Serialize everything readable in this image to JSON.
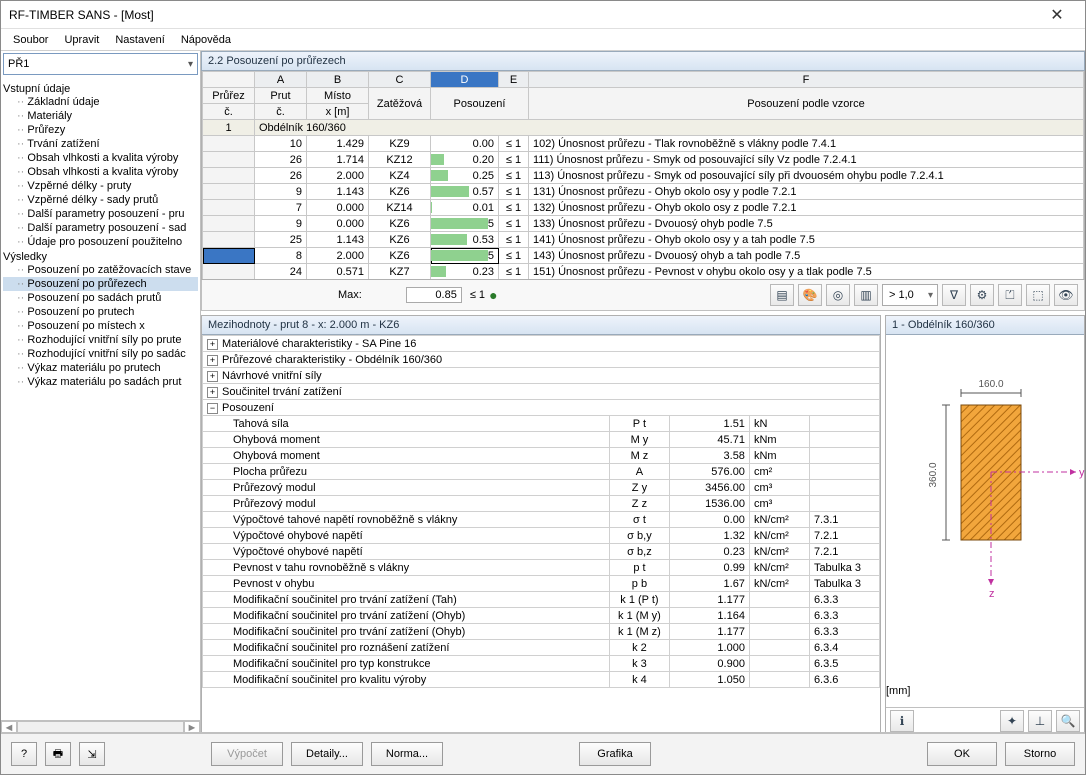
{
  "window": {
    "title": "RF-TIMBER SANS - [Most]"
  },
  "menu": [
    "Soubor",
    "Upravit",
    "Nastavení",
    "Nápověda"
  ],
  "case_selector": "PŘ1",
  "nav": {
    "input_title": "Vstupní údaje",
    "input_items": [
      "Základní údaje",
      "Materiály",
      "Průřezy",
      "Trvání zatížení",
      "Obsah vlhkosti a kvalita výroby",
      "Obsah vlhkosti a kvalita výroby",
      "Vzpěrné délky - pruty",
      "Vzpěrné délky - sady prutů",
      "Další parametry posouzení - pru",
      "Další parametry posouzení - sad",
      "Údaje pro posouzení použitelno"
    ],
    "results_title": "Výsledky",
    "results_items": [
      "Posouzení po zatěžovacích stave",
      "Posouzení po průřezech",
      "Posouzení po sadách prutů",
      "Posouzení po prutech",
      "Posouzení po místech x",
      "Rozhodující vnitřní síly po prute",
      "Rozhodující vnitřní síly po sadác",
      "Výkaz materiálu po prutech",
      "Výkaz materiálu po sadách prut"
    ],
    "selected": "Posouzení po průřezech"
  },
  "section_title": "2.2  Posouzení po průřezech",
  "grid": {
    "col_letters": [
      "A",
      "B",
      "C",
      "D",
      "E",
      "F"
    ],
    "headers_row1": [
      "Průřez",
      "Prut",
      "Místo",
      "",
      "",
      "",
      ""
    ],
    "headers_row2": [
      "č.",
      "č.",
      "x [m]",
      "Zatěžová",
      "Posouzení",
      "",
      "Posouzení podle vzorce"
    ],
    "group_label": "Obdélník 160/360",
    "group_no": "1",
    "rows": [
      {
        "prut": 10,
        "x": "1.429",
        "lc": "KZ9",
        "ratio": 0.0,
        "fill": 0.0,
        "desc": "102) Únosnost průřezu - Tlak rovnoběžně s vlákny podle 7.4.1"
      },
      {
        "prut": 26,
        "x": "1.714",
        "lc": "KZ12",
        "ratio": 0.2,
        "fill": 0.2,
        "desc": "111) Únosnost průřezu - Smyk od posouvající síly Vz podle 7.2.4.1"
      },
      {
        "prut": 26,
        "x": "2.000",
        "lc": "KZ4",
        "ratio": 0.25,
        "fill": 0.25,
        "desc": "113) Únosnost průřezu - Smyk od posouvající síly při dvouosém ohybu podle 7.2.4.1"
      },
      {
        "prut": 9,
        "x": "1.143",
        "lc": "KZ6",
        "ratio": 0.57,
        "fill": 0.57,
        "desc": "131) Únosnost průřezu - Ohyb okolo osy y podle 7.2.1"
      },
      {
        "prut": 7,
        "x": "0.000",
        "lc": "KZ14",
        "ratio": 0.01,
        "fill": 0.01,
        "desc": "132) Únosnost průřezu - Ohyb okolo osy z podle 7.2.1"
      },
      {
        "prut": 9,
        "x": "0.000",
        "lc": "KZ6",
        "ratio": 0.85,
        "fill": 0.85,
        "desc": "133) Únosnost průřezu - Dvouosý ohyb podle 7.5"
      },
      {
        "prut": 25,
        "x": "1.143",
        "lc": "KZ6",
        "ratio": 0.53,
        "fill": 0.53,
        "desc": "141) Únosnost průřezu - Ohyb okolo osy y a tah podle 7.5"
      },
      {
        "prut": 8,
        "x": "2.000",
        "lc": "KZ6",
        "ratio": 0.85,
        "fill": 0.85,
        "desc": "143) Únosnost průřezu - Dvouosý ohyb a tah podle 7.5",
        "selected": true
      },
      {
        "prut": 24,
        "x": "0.571",
        "lc": "KZ7",
        "ratio": 0.23,
        "fill": 0.23,
        "desc": "151) Únosnost průřezu - Pevnost v ohybu okolo osy y a tlak podle 7.5"
      }
    ],
    "max_label": "Max:",
    "max_value": "0.85",
    "le1": "≤ 1",
    "scale_combo": "> 1,0"
  },
  "details": {
    "header": "Mezihodnoty - prut 8 - x: 2.000 m - KZ6",
    "collapsible": [
      "Materiálové charakteristiky - SA Pine 16",
      "Průřezové charakteristiky - Obdélník 160/360",
      "Návrhové vnitřní síly",
      "Součinitel trvání zatížení"
    ],
    "open_section": "Posouzení",
    "rows": [
      {
        "label": "Tahová síla",
        "sym": "P t",
        "val": "1.51",
        "unit": "kN",
        "ref": ""
      },
      {
        "label": "Ohybová moment",
        "sym": "M y",
        "val": "45.71",
        "unit": "kNm",
        "ref": ""
      },
      {
        "label": "Ohybová moment",
        "sym": "M z",
        "val": "3.58",
        "unit": "kNm",
        "ref": ""
      },
      {
        "label": "Plocha průřezu",
        "sym": "A",
        "val": "576.00",
        "unit": "cm²",
        "ref": ""
      },
      {
        "label": "Průřezový modul",
        "sym": "Z y",
        "val": "3456.00",
        "unit": "cm³",
        "ref": ""
      },
      {
        "label": "Průřezový modul",
        "sym": "Z z",
        "val": "1536.00",
        "unit": "cm³",
        "ref": ""
      },
      {
        "label": "Výpočtové tahové napětí rovnoběžně s vlákny",
        "sym": "σ t",
        "val": "0.00",
        "unit": "kN/cm²",
        "ref": "7.3.1"
      },
      {
        "label": "Výpočtové ohybové napětí",
        "sym": "σ b,y",
        "val": "1.32",
        "unit": "kN/cm²",
        "ref": "7.2.1"
      },
      {
        "label": "Výpočtové ohybové napětí",
        "sym": "σ b,z",
        "val": "0.23",
        "unit": "kN/cm²",
        "ref": "7.2.1"
      },
      {
        "label": "Pevnost v tahu rovnoběžně s vlákny",
        "sym": "p t",
        "val": "0.99",
        "unit": "kN/cm²",
        "ref": "Tabulka 3"
      },
      {
        "label": "Pevnost v ohybu",
        "sym": "p b",
        "val": "1.67",
        "unit": "kN/cm²",
        "ref": "Tabulka 3"
      },
      {
        "label": "Modifikační součinitel pro trvání zatížení (Tah)",
        "sym": "k 1 (P t)",
        "val": "1.177",
        "unit": "",
        "ref": "6.3.3"
      },
      {
        "label": "Modifikační součinitel pro trvání zatížení (Ohyb)",
        "sym": "k 1 (M y)",
        "val": "1.164",
        "unit": "",
        "ref": "6.3.3"
      },
      {
        "label": "Modifikační součinitel pro trvání zatížení (Ohyb)",
        "sym": "k 1 (M z)",
        "val": "1.177",
        "unit": "",
        "ref": "6.3.3"
      },
      {
        "label": "Modifikační součinitel pro roznášení zatížení",
        "sym": "k 2",
        "val": "1.000",
        "unit": "",
        "ref": "6.3.4"
      },
      {
        "label": "Modifikační součinitel pro typ konstrukce",
        "sym": "k 3",
        "val": "0.900",
        "unit": "",
        "ref": "6.3.5"
      },
      {
        "label": "Modifikační součinitel pro kvalitu výroby",
        "sym": "k 4",
        "val": "1.050",
        "unit": "",
        "ref": "6.3.6"
      }
    ]
  },
  "preview": {
    "title": "1 - Obdélník 160/360",
    "width_label": "160.0",
    "height_label": "360.0",
    "y_axis": "y",
    "z_axis": "z",
    "unit": "[mm]",
    "rect_fill": "#f2a63c",
    "hatch_color": "#b06a10",
    "bg": "#ffffff"
  },
  "buttons": {
    "calc": "Výpočet",
    "details": "Detaily...",
    "norm": "Norma...",
    "graphics": "Grafika",
    "ok": "OK",
    "cancel": "Storno"
  }
}
